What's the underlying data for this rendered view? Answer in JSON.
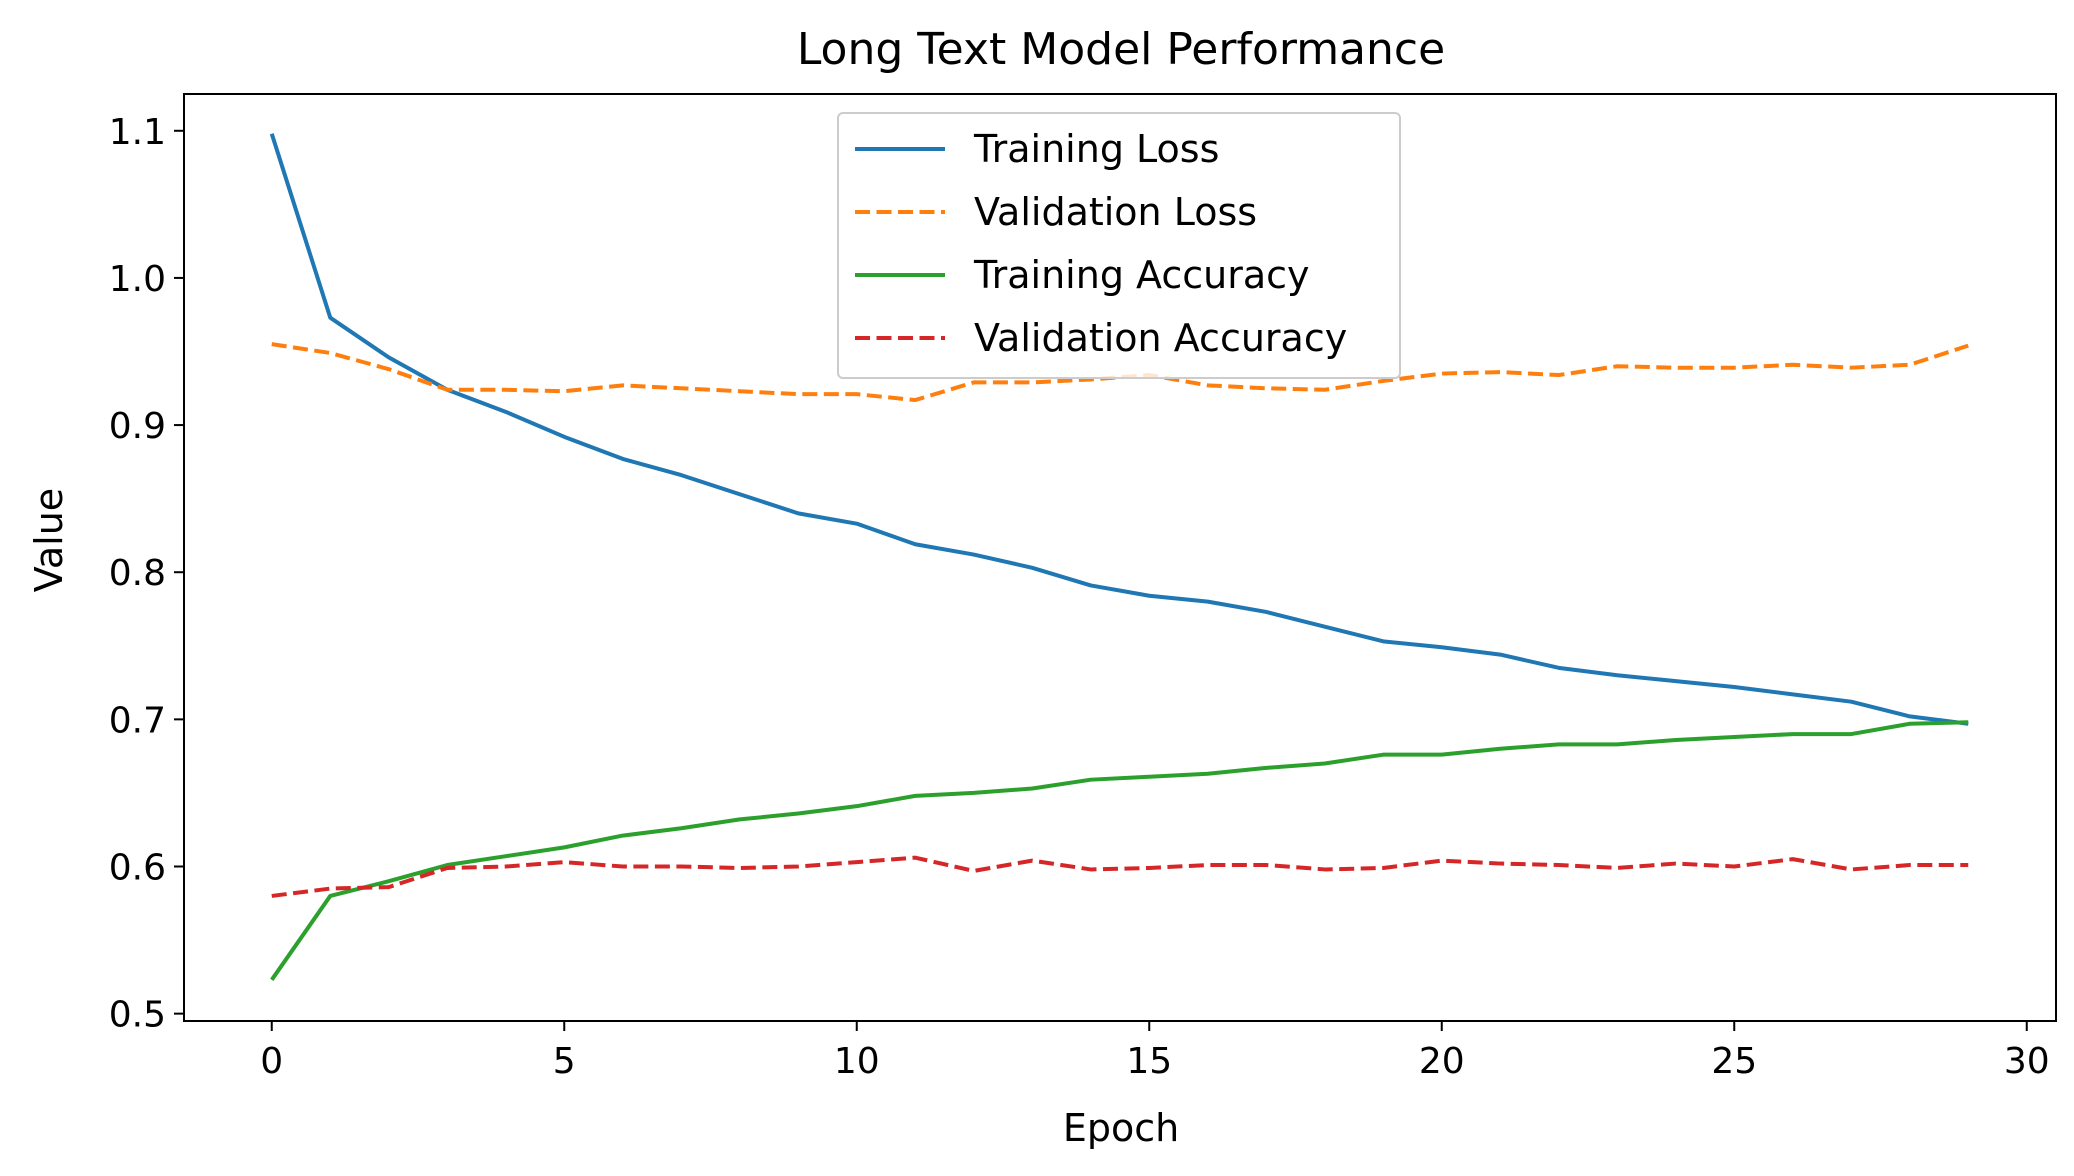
{
  "chart_data": {
    "type": "line",
    "title": "Long Text Model Performance",
    "xlabel": "Epoch",
    "ylabel": "Value",
    "xlim": [
      -1.5,
      30.5
    ],
    "ylim": [
      0.495,
      1.125
    ],
    "xticks": [
      0,
      5,
      10,
      15,
      20,
      25,
      30
    ],
    "yticks": [
      0.5,
      0.6,
      0.7,
      0.8,
      0.9,
      1.0,
      1.1
    ],
    "ytick_labels": [
      "0.5",
      "0.6",
      "0.7",
      "0.8",
      "0.9",
      "1.0",
      "1.1"
    ],
    "legend_position": "top-center",
    "grid": false,
    "x": [
      0,
      1,
      2,
      3,
      4,
      5,
      6,
      7,
      8,
      9,
      10,
      11,
      12,
      13,
      14,
      15,
      16,
      17,
      18,
      19,
      20,
      21,
      22,
      23,
      24,
      25,
      26,
      27,
      28,
      29
    ],
    "series": [
      {
        "name": "Training Loss",
        "color": "#1f77b4",
        "style": "solid",
        "values": [
          1.098,
          0.973,
          0.946,
          0.924,
          0.909,
          0.892,
          0.877,
          0.866,
          0.853,
          0.84,
          0.833,
          0.819,
          0.812,
          0.803,
          0.791,
          0.784,
          0.78,
          0.773,
          0.763,
          0.753,
          0.749,
          0.744,
          0.735,
          0.73,
          0.726,
          0.722,
          0.717,
          0.712,
          0.702,
          0.697
        ]
      },
      {
        "name": "Validation Loss",
        "color": "#ff7f0e",
        "style": "dashed",
        "values": [
          0.955,
          0.949,
          0.938,
          0.924,
          0.924,
          0.923,
          0.927,
          0.925,
          0.923,
          0.921,
          0.921,
          0.917,
          0.929,
          0.929,
          0.931,
          0.934,
          0.927,
          0.925,
          0.924,
          0.93,
          0.935,
          0.936,
          0.934,
          0.94,
          0.939,
          0.939,
          0.941,
          0.939,
          0.941,
          0.954
        ]
      },
      {
        "name": "Training Accuracy",
        "color": "#2ca02c",
        "style": "solid",
        "values": [
          0.523,
          0.58,
          0.59,
          0.601,
          0.607,
          0.613,
          0.621,
          0.626,
          0.632,
          0.636,
          0.641,
          0.648,
          0.65,
          0.653,
          0.659,
          0.661,
          0.663,
          0.667,
          0.67,
          0.676,
          0.676,
          0.68,
          0.683,
          0.683,
          0.686,
          0.688,
          0.69,
          0.69,
          0.697,
          0.698
        ]
      },
      {
        "name": "Validation Accuracy",
        "color": "#d62728",
        "style": "dashed",
        "values": [
          0.58,
          0.585,
          0.586,
          0.599,
          0.6,
          0.603,
          0.6,
          0.6,
          0.599,
          0.6,
          0.603,
          0.606,
          0.597,
          0.604,
          0.598,
          0.599,
          0.601,
          0.601,
          0.598,
          0.599,
          0.604,
          0.602,
          0.601,
          0.599,
          0.602,
          0.6,
          0.605,
          0.598,
          0.601,
          0.601
        ]
      }
    ]
  }
}
